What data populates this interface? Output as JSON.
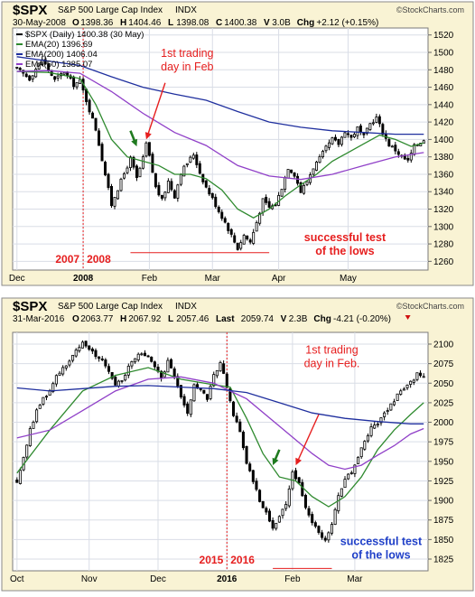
{
  "colors": {
    "frame_bg": "#f9f3d4",
    "plot_bg": "#ffffff",
    "grid": "#d9dde6",
    "candle_up": "#ffffff",
    "candle_down": "#000000",
    "candle_outline": "#000000",
    "ema20": "#2f8a2f",
    "ema200": "#1f2f9e",
    "ema50": "#9040c8",
    "annotation_red": "#e61e1e",
    "annotation_green": "#1f7a1f",
    "annotation_blue": "#1f3fc8",
    "border": "#8a8a8a"
  },
  "chart_data": [
    {
      "type": "candlestick",
      "symbol": "$SPX",
      "title": "S&P 500 Large Cap Index",
      "exchange": "INDX",
      "date": "30-May-2008",
      "ohlc_header": {
        "open_label": "O",
        "open": "1398.36",
        "high_label": "H",
        "high": "1404.46",
        "low_label": "L",
        "low": "1398.08",
        "close_label": "C",
        "close": "1400.38",
        "volume_label": "V",
        "volume": "3.0B",
        "change_label": "Chg",
        "change": "+2.12 (+0.15%)"
      },
      "legend": [
        {
          "key": "price",
          "label": "$SPX (Daily) 1400.38 (30 May)"
        },
        {
          "key": "ema20",
          "label": "EMA(20) 1396.69"
        },
        {
          "key": "ema200",
          "label": "EMA(200) 1406.04"
        },
        {
          "key": "ema50",
          "label": "EMA(50) 1385.07"
        }
      ],
      "ylim": [
        1250,
        1528
      ],
      "y_ticks": [
        1260,
        1280,
        1300,
        1320,
        1340,
        1360,
        1380,
        1400,
        1420,
        1440,
        1460,
        1480,
        1500,
        1520
      ],
      "n_days": 130,
      "x_ticks": [
        {
          "label": "Dec",
          "day": 0,
          "bold": false
        },
        {
          "label": "2008",
          "day": 21,
          "bold": true
        },
        {
          "label": "Feb",
          "day": 42,
          "bold": false
        },
        {
          "label": "Mar",
          "day": 62,
          "bold": false
        },
        {
          "label": "Apr",
          "day": 83,
          "bold": false
        },
        {
          "label": "May",
          "day": 105,
          "bold": false
        }
      ],
      "year_divider_day": 21,
      "year_labels": [
        "2007",
        "2008"
      ],
      "price_path": [
        [
          0,
          1481
        ],
        [
          4,
          1470
        ],
        [
          8,
          1492
        ],
        [
          12,
          1468
        ],
        [
          15,
          1478
        ],
        [
          18,
          1463
        ],
        [
          20,
          1467
        ],
        [
          22,
          1445
        ],
        [
          25,
          1412
        ],
        [
          28,
          1360
        ],
        [
          30,
          1325
        ],
        [
          31,
          1335
        ],
        [
          33,
          1352
        ],
        [
          36,
          1378
        ],
        [
          38,
          1355
        ],
        [
          40,
          1378
        ],
        [
          41,
          1395
        ],
        [
          42,
          1380
        ],
        [
          44,
          1345
        ],
        [
          46,
          1330
        ],
        [
          48,
          1352
        ],
        [
          50,
          1335
        ],
        [
          52,
          1362
        ],
        [
          54,
          1373
        ],
        [
          56,
          1383
        ],
        [
          58,
          1362
        ],
        [
          60,
          1345
        ],
        [
          62,
          1332
        ],
        [
          64,
          1318
        ],
        [
          66,
          1305
        ],
        [
          68,
          1290
        ],
        [
          70,
          1275
        ],
        [
          72,
          1290
        ],
        [
          74,
          1282
        ],
        [
          76,
          1305
        ],
        [
          78,
          1330
        ],
        [
          80,
          1322
        ],
        [
          82,
          1325
        ],
        [
          84,
          1345
        ],
        [
          86,
          1368
        ],
        [
          88,
          1360
        ],
        [
          90,
          1340
        ],
        [
          92,
          1352
        ],
        [
          94,
          1368
        ],
        [
          96,
          1378
        ],
        [
          98,
          1390
        ],
        [
          100,
          1400
        ],
        [
          102,
          1395
        ],
        [
          104,
          1410
        ],
        [
          106,
          1402
        ],
        [
          108,
          1413
        ],
        [
          110,
          1403
        ],
        [
          112,
          1418
        ],
        [
          114,
          1425
        ],
        [
          116,
          1408
        ],
        [
          118,
          1394
        ],
        [
          120,
          1388
        ],
        [
          122,
          1380
        ],
        [
          124,
          1375
        ],
        [
          126,
          1392
        ],
        [
          129,
          1400
        ]
      ],
      "ema20_path": [
        [
          0,
          1478
        ],
        [
          10,
          1477
        ],
        [
          20,
          1470
        ],
        [
          25,
          1440
        ],
        [
          30,
          1400
        ],
        [
          35,
          1380
        ],
        [
          40,
          1375
        ],
        [
          45,
          1370
        ],
        [
          50,
          1360
        ],
        [
          55,
          1360
        ],
        [
          60,
          1355
        ],
        [
          65,
          1342
        ],
        [
          70,
          1320
        ],
        [
          75,
          1310
        ],
        [
          80,
          1320
        ],
        [
          85,
          1335
        ],
        [
          90,
          1348
        ],
        [
          95,
          1360
        ],
        [
          100,
          1375
        ],
        [
          105,
          1385
        ],
        [
          110,
          1395
        ],
        [
          115,
          1405
        ],
        [
          120,
          1400
        ],
        [
          125,
          1392
        ],
        [
          129,
          1396
        ]
      ],
      "ema200_path": [
        [
          0,
          1495
        ],
        [
          10,
          1490
        ],
        [
          20,
          1485
        ],
        [
          30,
          1472
        ],
        [
          40,
          1460
        ],
        [
          50,
          1452
        ],
        [
          60,
          1445
        ],
        [
          70,
          1432
        ],
        [
          80,
          1420
        ],
        [
          90,
          1414
        ],
        [
          100,
          1410
        ],
        [
          110,
          1408
        ],
        [
          120,
          1406
        ],
        [
          129,
          1406
        ]
      ],
      "ema50_path": [
        [
          0,
          1478
        ],
        [
          10,
          1479
        ],
        [
          20,
          1476
        ],
        [
          30,
          1455
        ],
        [
          40,
          1430
        ],
        [
          50,
          1408
        ],
        [
          60,
          1393
        ],
        [
          70,
          1370
        ],
        [
          80,
          1358
        ],
        [
          90,
          1354
        ],
        [
          100,
          1360
        ],
        [
          110,
          1370
        ],
        [
          120,
          1380
        ],
        [
          129,
          1385
        ]
      ],
      "support_line": {
        "day_start": 36,
        "day_end": 80,
        "value": 1270
      },
      "annotations": [
        {
          "key": "feb_text",
          "lines": [
            "1st trading",
            "day in Feb"
          ],
          "day": 54,
          "value": 1495,
          "color_key": "annotation_red"
        },
        {
          "key": "test_text",
          "lines": [
            "successful test",
            "of the lows"
          ],
          "day": 104,
          "value": 1283,
          "color_key": "annotation_red"
        }
      ],
      "arrows": [
        {
          "key": "feb_arrow",
          "from_day": 47,
          "from_value": 1465,
          "to_day": 41,
          "to_value": 1400,
          "color_key": "annotation_red"
        },
        {
          "key": "green_arrow",
          "from_day": 36,
          "from_value": 1410,
          "to_day": 38,
          "to_value": 1392,
          "color_key": "annotation_green"
        }
      ]
    },
    {
      "type": "candlestick",
      "symbol": "$SPX",
      "title": "S&P 500 Large Cap Index",
      "exchange": "INDX",
      "date": "31-Mar-2016",
      "ohlc_header": {
        "open_label": "O",
        "open": "2063.77",
        "high_label": "H",
        "high": "2067.92",
        "low_label": "L",
        "low": "2057.46",
        "close_label": "Last",
        "close": "2059.74",
        "volume_label": "V",
        "volume": "2.3B",
        "change_label": "Chg",
        "change": "-4.21 (-0.20%)"
      },
      "legend": [],
      "ylim": [
        1810,
        2115
      ],
      "y_ticks": [
        1825,
        1850,
        1875,
        1900,
        1925,
        1950,
        1975,
        2000,
        2025,
        2050,
        2075,
        2100
      ],
      "n_days": 125,
      "x_ticks": [
        {
          "label": "Oct",
          "day": 0,
          "bold": false
        },
        {
          "label": "Nov",
          "day": 22,
          "bold": false
        },
        {
          "label": "Dec",
          "day": 43,
          "bold": false
        },
        {
          "label": "2016",
          "day": 64,
          "bold": true
        },
        {
          "label": "Feb",
          "day": 84,
          "bold": false
        },
        {
          "label": "Mar",
          "day": 103,
          "bold": false
        }
      ],
      "year_divider_day": 64,
      "year_labels": [
        "2015",
        "2016"
      ],
      "price_path": [
        [
          0,
          1925
        ],
        [
          2,
          1955
        ],
        [
          4,
          1990
        ],
        [
          6,
          2015
        ],
        [
          8,
          2030
        ],
        [
          10,
          2040
        ],
        [
          12,
          2060
        ],
        [
          14,
          2070
        ],
        [
          16,
          2078
        ],
        [
          18,
          2090
        ],
        [
          20,
          2100
        ],
        [
          22,
          2096
        ],
        [
          24,
          2085
        ],
        [
          26,
          2080
        ],
        [
          28,
          2066
        ],
        [
          30,
          2050
        ],
        [
          32,
          2054
        ],
        [
          34,
          2070
        ],
        [
          36,
          2082
        ],
        [
          38,
          2090
        ],
        [
          40,
          2082
        ],
        [
          42,
          2070
        ],
        [
          44,
          2055
        ],
        [
          46,
          2078
        ],
        [
          48,
          2060
        ],
        [
          50,
          2030
        ],
        [
          52,
          2010
        ],
        [
          54,
          2048
        ],
        [
          56,
          2040
        ],
        [
          58,
          2030
        ],
        [
          60,
          2060
        ],
        [
          62,
          2075
        ],
        [
          63,
          2062
        ],
        [
          64,
          2043
        ],
        [
          66,
          2010
        ],
        [
          68,
          1990
        ],
        [
          70,
          1948
        ],
        [
          72,
          1925
        ],
        [
          74,
          1900
        ],
        [
          76,
          1885
        ],
        [
          78,
          1865
        ],
        [
          80,
          1880
        ],
        [
          82,
          1895
        ],
        [
          84,
          1935
        ],
        [
          86,
          1925
        ],
        [
          88,
          1890
        ],
        [
          90,
          1870
        ],
        [
          92,
          1860
        ],
        [
          94,
          1850
        ],
        [
          96,
          1868
        ],
        [
          98,
          1905
        ],
        [
          100,
          1925
        ],
        [
          102,
          1938
        ],
        [
          104,
          1955
        ],
        [
          106,
          1975
        ],
        [
          108,
          1992
        ],
        [
          110,
          2000
        ],
        [
          112,
          2010
        ],
        [
          114,
          2022
        ],
        [
          116,
          2035
        ],
        [
          118,
          2040
        ],
        [
          120,
          2050
        ],
        [
          122,
          2062
        ],
        [
          124,
          2060
        ]
      ],
      "ema20_path": [
        [
          0,
          1935
        ],
        [
          10,
          1990
        ],
        [
          20,
          2040
        ],
        [
          30,
          2060
        ],
        [
          40,
          2070
        ],
        [
          50,
          2055
        ],
        [
          60,
          2048
        ],
        [
          65,
          2045
        ],
        [
          70,
          2005
        ],
        [
          75,
          1960
        ],
        [
          80,
          1930
        ],
        [
          85,
          1925
        ],
        [
          90,
          1905
        ],
        [
          95,
          1892
        ],
        [
          100,
          1905
        ],
        [
          105,
          1930
        ],
        [
          110,
          1965
        ],
        [
          115,
          1990
        ],
        [
          120,
          2010
        ],
        [
          124,
          2025
        ]
      ],
      "ema200_path": [
        [
          0,
          2044
        ],
        [
          10,
          2040
        ],
        [
          20,
          2043
        ],
        [
          30,
          2046
        ],
        [
          40,
          2047
        ],
        [
          50,
          2045
        ],
        [
          60,
          2043
        ],
        [
          70,
          2038
        ],
        [
          80,
          2025
        ],
        [
          90,
          2012
        ],
        [
          100,
          2005
        ],
        [
          110,
          2001
        ],
        [
          120,
          1998
        ],
        [
          124,
          1998
        ]
      ],
      "ema50_path": [
        [
          0,
          1980
        ],
        [
          10,
          1990
        ],
        [
          20,
          2015
        ],
        [
          30,
          2040
        ],
        [
          40,
          2055
        ],
        [
          50,
          2058
        ],
        [
          60,
          2050
        ],
        [
          70,
          2030
        ],
        [
          80,
          1995
        ],
        [
          90,
          1960
        ],
        [
          95,
          1945
        ],
        [
          100,
          1940
        ],
        [
          105,
          1945
        ],
        [
          110,
          1958
        ],
        [
          115,
          1970
        ],
        [
          120,
          1985
        ],
        [
          124,
          1992
        ]
      ],
      "support_line": {
        "day_start": 78,
        "day_end": 96,
        "value": 1813
      },
      "annotations": [
        {
          "key": "feb_text",
          "lines": [
            "1st trading",
            "day in Feb."
          ],
          "day": 96,
          "value": 2088,
          "color_key": "annotation_red"
        },
        {
          "key": "test_text",
          "lines": [
            "successful test",
            "of the lows"
          ],
          "day": 111,
          "value": 1843,
          "color_key": "annotation_blue"
        }
      ],
      "arrows": [
        {
          "key": "feb_arrow",
          "from_day": 92,
          "from_value": 2010,
          "to_day": 85,
          "to_value": 1945,
          "color_key": "annotation_red"
        },
        {
          "key": "green_arrow",
          "from_day": 80,
          "from_value": 1965,
          "to_day": 78,
          "to_value": 1945,
          "color_key": "annotation_green"
        }
      ]
    }
  ]
}
